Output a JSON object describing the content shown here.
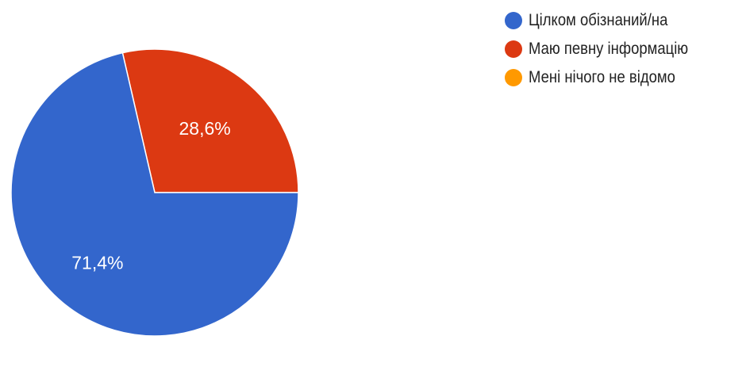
{
  "chart_data": {
    "type": "pie",
    "title": "",
    "slices": [
      {
        "label": "Цілком обізнаний/на",
        "value": 71.4,
        "display": "71,4%",
        "color": "#3366cc"
      },
      {
        "label": "Маю певну інформацію",
        "value": 28.6,
        "display": "28,6%",
        "color": "#dc3912"
      },
      {
        "label": "Мені нічого не відомо",
        "value": 0,
        "display": "",
        "color": "#ff9900"
      }
    ],
    "legend_position": "right",
    "start_angle": "top, clockwise"
  }
}
